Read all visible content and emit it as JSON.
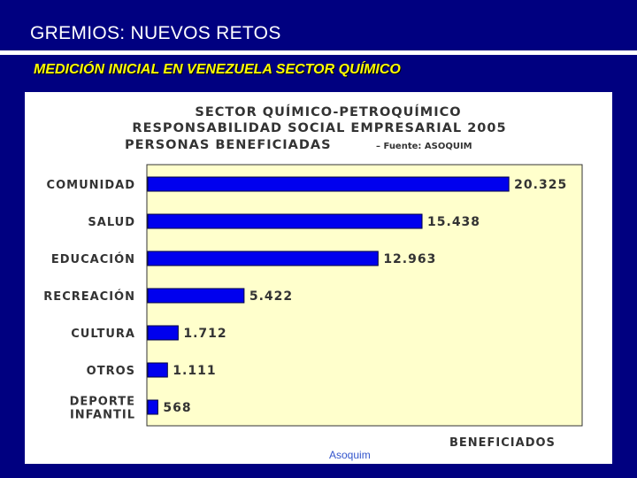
{
  "slide": {
    "title": "GREMIOS: NUEVOS RETOS",
    "subtitle": "MEDICIÓN INICIAL EN VENEZUELA SECTOR QUÍMICO",
    "footer_source": "Asoquim"
  },
  "colors": {
    "background": "#000080",
    "subtitle": "#ffff00",
    "plot_background": "#ffffcc",
    "bar": "#0000ee"
  },
  "chart_data": {
    "type": "bar",
    "orientation": "horizontal",
    "title_lines": [
      "SECTOR QUÍMICO-PETROQUÍMICO",
      "RESPONSABILIDAD SOCIAL EMPRESARIAL 2005",
      "PERSONAS BENEFICIADAS"
    ],
    "source_note": "– Fuente: ASOQUIM",
    "categories": [
      [
        "COMUNIDAD"
      ],
      [
        "SALUD"
      ],
      [
        "EDUCACIÓN"
      ],
      [
        "RECREACIÓN"
      ],
      [
        "CULTURA"
      ],
      [
        "OTROS"
      ],
      [
        "DEPORTE",
        "INFANTIL"
      ]
    ],
    "values": [
      20325,
      15438,
      12963,
      5422,
      1712,
      1111,
      568
    ],
    "value_labels": [
      "20.325",
      "15.438",
      "12.963",
      "5.422",
      "1.712",
      "1.111",
      "568"
    ],
    "xlabel": "BENEFICIADOS",
    "xlim": [
      0,
      24500
    ],
    "grid": false,
    "legend": "none"
  }
}
